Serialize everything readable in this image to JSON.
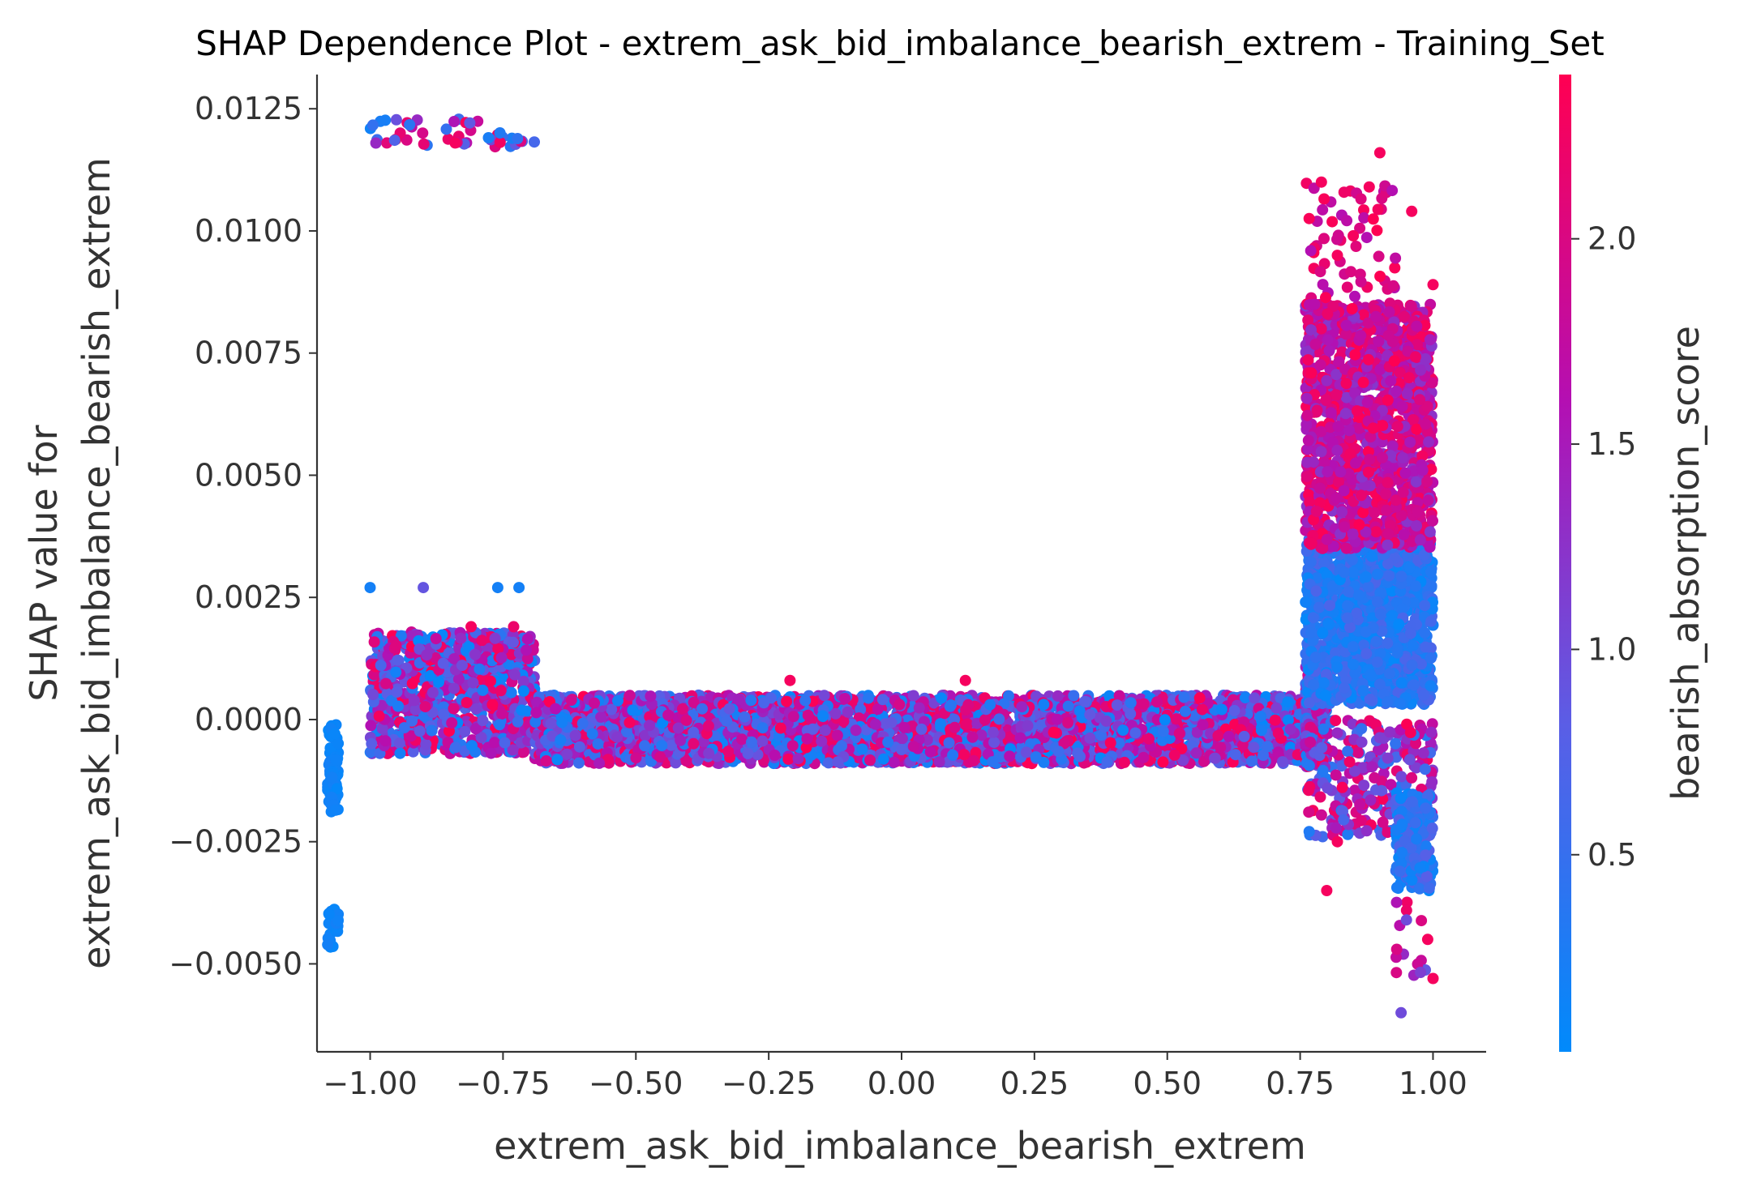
{
  "chart_data": {
    "type": "scatter",
    "title": "SHAP Dependence Plot - extrem_ask_bid_imbalance_bearish_extrem - Training_Set",
    "xlabel": "extrem_ask_bid_imbalance_bearish_extrem",
    "ylabel_line1": "SHAP value for",
    "ylabel_line2": "extrem_ask_bid_imbalance_bearish_extrem",
    "xlim": [
      -1.1,
      1.1
    ],
    "ylim": [
      -0.0068,
      0.0132
    ],
    "x_ticks": [
      {
        "value": -1.0,
        "label": "−1.00"
      },
      {
        "value": -0.75,
        "label": "−0.75"
      },
      {
        "value": -0.5,
        "label": "−0.50"
      },
      {
        "value": -0.25,
        "label": "−0.25"
      },
      {
        "value": 0.0,
        "label": "0.00"
      },
      {
        "value": 0.25,
        "label": "0.25"
      },
      {
        "value": 0.5,
        "label": "0.50"
      },
      {
        "value": 0.75,
        "label": "0.75"
      },
      {
        "value": 1.0,
        "label": "1.00"
      }
    ],
    "y_ticks": [
      {
        "value": -0.005,
        "label": "−0.0050"
      },
      {
        "value": -0.0025,
        "label": "−0.0025"
      },
      {
        "value": 0.0,
        "label": "0.0000"
      },
      {
        "value": 0.0025,
        "label": "0.0025"
      },
      {
        "value": 0.005,
        "label": "0.0050"
      },
      {
        "value": 0.0075,
        "label": "0.0075"
      },
      {
        "value": 0.01,
        "label": "0.0100"
      },
      {
        "value": 0.0125,
        "label": "0.0125"
      }
    ],
    "grid": false,
    "colorbar": {
      "label": "bearish_absorption_score",
      "range": [
        0.02,
        2.4
      ],
      "ticks": [
        {
          "value": 0.5,
          "label": "0.5"
        },
        {
          "value": 1.0,
          "label": "1.0"
        },
        {
          "value": 1.5,
          "label": "1.5"
        },
        {
          "value": 2.0,
          "label": "2.0"
        }
      ],
      "colors": [
        "#008afb",
        "#5a5ee6",
        "#b40fb2",
        "#ff0052"
      ]
    },
    "series_description": "point cloud of SHAP values vs feature value, colored by bearish_absorption_score",
    "clusters": [
      {
        "x": [
          -1.08,
          -1.06
        ],
        "y": [
          -0.0019,
          -0.0001
        ],
        "c": [
          0.05,
          0.2
        ],
        "n": 80
      },
      {
        "x": [
          -1.08,
          -1.06
        ],
        "y": [
          -0.0047,
          -0.0038
        ],
        "c": [
          0.05,
          0.2
        ],
        "n": 30
      },
      {
        "x": [
          -1.0,
          -0.69
        ],
        "y": [
          -0.0007,
          0.0018
        ],
        "c": [
          0.05,
          2.4
        ],
        "n": 900
      },
      {
        "x": [
          -1.0,
          -0.69
        ],
        "y": [
          0.0117,
          0.0123
        ],
        "c": [
          0.1,
          2.4
        ],
        "n": 45
      },
      {
        "x": [
          -0.69,
          0.77
        ],
        "y": [
          -0.0009,
          0.0005
        ],
        "c": [
          0.05,
          2.4
        ],
        "n": 3600
      },
      {
        "x": [
          0.76,
          0.8
        ],
        "y": [
          -0.001,
          0.0012
        ],
        "c": [
          0.05,
          2.4
        ],
        "n": 250
      },
      {
        "x": [
          0.76,
          1.0
        ],
        "y": [
          0.0003,
          0.0038
        ],
        "c": [
          0.05,
          0.7
        ],
        "n": 1300
      },
      {
        "x": [
          0.76,
          1.0
        ],
        "y": [
          0.0035,
          0.0085
        ],
        "c": [
          1.2,
          2.4
        ],
        "n": 1300
      },
      {
        "x": [
          0.76,
          0.93
        ],
        "y": [
          0.0083,
          0.011
        ],
        "c": [
          1.6,
          2.4
        ],
        "n": 70
      },
      {
        "x": [
          0.76,
          1.0
        ],
        "y": [
          -0.0024,
          0.0
        ],
        "c": [
          0.3,
          2.4
        ],
        "n": 260
      },
      {
        "x": [
          0.93,
          1.0
        ],
        "y": [
          -0.0035,
          -0.0015
        ],
        "c": [
          0.05,
          0.8
        ],
        "n": 200
      },
      {
        "x": [
          0.93,
          1.0
        ],
        "y": [
          -0.0053,
          -0.0037
        ],
        "c": [
          0.8,
          2.4
        ],
        "n": 14
      }
    ],
    "points": [
      [
        -1.0,
        0.0027,
        0.2
      ],
      [
        -0.9,
        0.0027,
        0.9
      ],
      [
        -0.76,
        0.0027,
        0.2
      ],
      [
        -0.72,
        0.0027,
        0.2
      ],
      [
        -0.81,
        0.0019,
        2.3
      ],
      [
        -0.73,
        0.0019,
        2.2
      ],
      [
        0.12,
        0.0008,
        2.3
      ],
      [
        -0.21,
        0.0008,
        2.3
      ],
      [
        0.9,
        0.0116,
        2.3
      ],
      [
        0.96,
        0.0104,
        2.3
      ],
      [
        0.85,
        0.0099,
        2.3
      ],
      [
        1.0,
        0.0089,
        2.3
      ],
      [
        0.88,
        0.0109,
        2.3
      ],
      [
        0.79,
        0.011,
        2.3
      ],
      [
        0.82,
        0.0095,
        2.3
      ],
      [
        0.82,
        -0.0025,
        2.3
      ],
      [
        0.8,
        -0.0035,
        2.3
      ],
      [
        0.94,
        -0.006,
        1.0
      ],
      [
        1.0,
        -0.0053,
        2.3
      ],
      [
        0.95,
        -0.0041,
        1.0
      ],
      [
        0.99,
        -0.0045,
        2.3
      ],
      [
        -0.84,
        0.0118,
        2.3
      ]
    ]
  }
}
